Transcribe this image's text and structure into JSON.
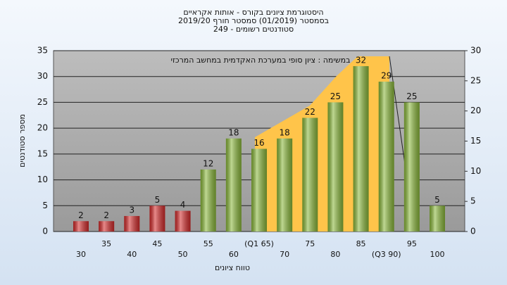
{
  "chart_data": {
    "type": "bar",
    "title": "היסטוגרמת ציונים בקורס - אותות אקראיים",
    "subtitle": "בסמסטר  (01/2019)  סמסטר חורף  2019/20",
    "subtitle2": "סטודנטים רשומים - 249",
    "annotation": "במשימה : ציון סופי במערכת האקדמית במחשב המרכזי",
    "xlabel": "טווח ציונים",
    "ylabel": "מספר סטודנטים",
    "categories": [
      "30",
      "35",
      "40",
      "45",
      "50",
      "55",
      "60",
      "(Q1 65)",
      "70",
      "75",
      "80",
      "85",
      "(Q3 90)",
      "95",
      "100"
    ],
    "values": [
      2,
      2,
      3,
      5,
      4,
      12,
      18,
      16,
      18,
      22,
      25,
      32,
      29,
      25,
      5
    ],
    "colors": [
      "#d42a2a",
      "#d42a2a",
      "#d42a2a",
      "#d42a2a",
      "#d42a2a",
      "#8ab83a",
      "#8ab83a",
      "#8ab83a",
      "#8ab83a",
      "#8ab83a",
      "#8ab83a",
      "#8ab83a",
      "#8ab83a",
      "#8ab83a",
      "#8ab83a"
    ],
    "ylim": [
      0,
      35
    ],
    "yticks": [
      0,
      5,
      10,
      15,
      20,
      25,
      30,
      35
    ],
    "y2lim": [
      0,
      30
    ],
    "y2ticks": [
      0,
      5,
      10,
      15,
      20,
      25,
      30
    ],
    "grid": true
  }
}
